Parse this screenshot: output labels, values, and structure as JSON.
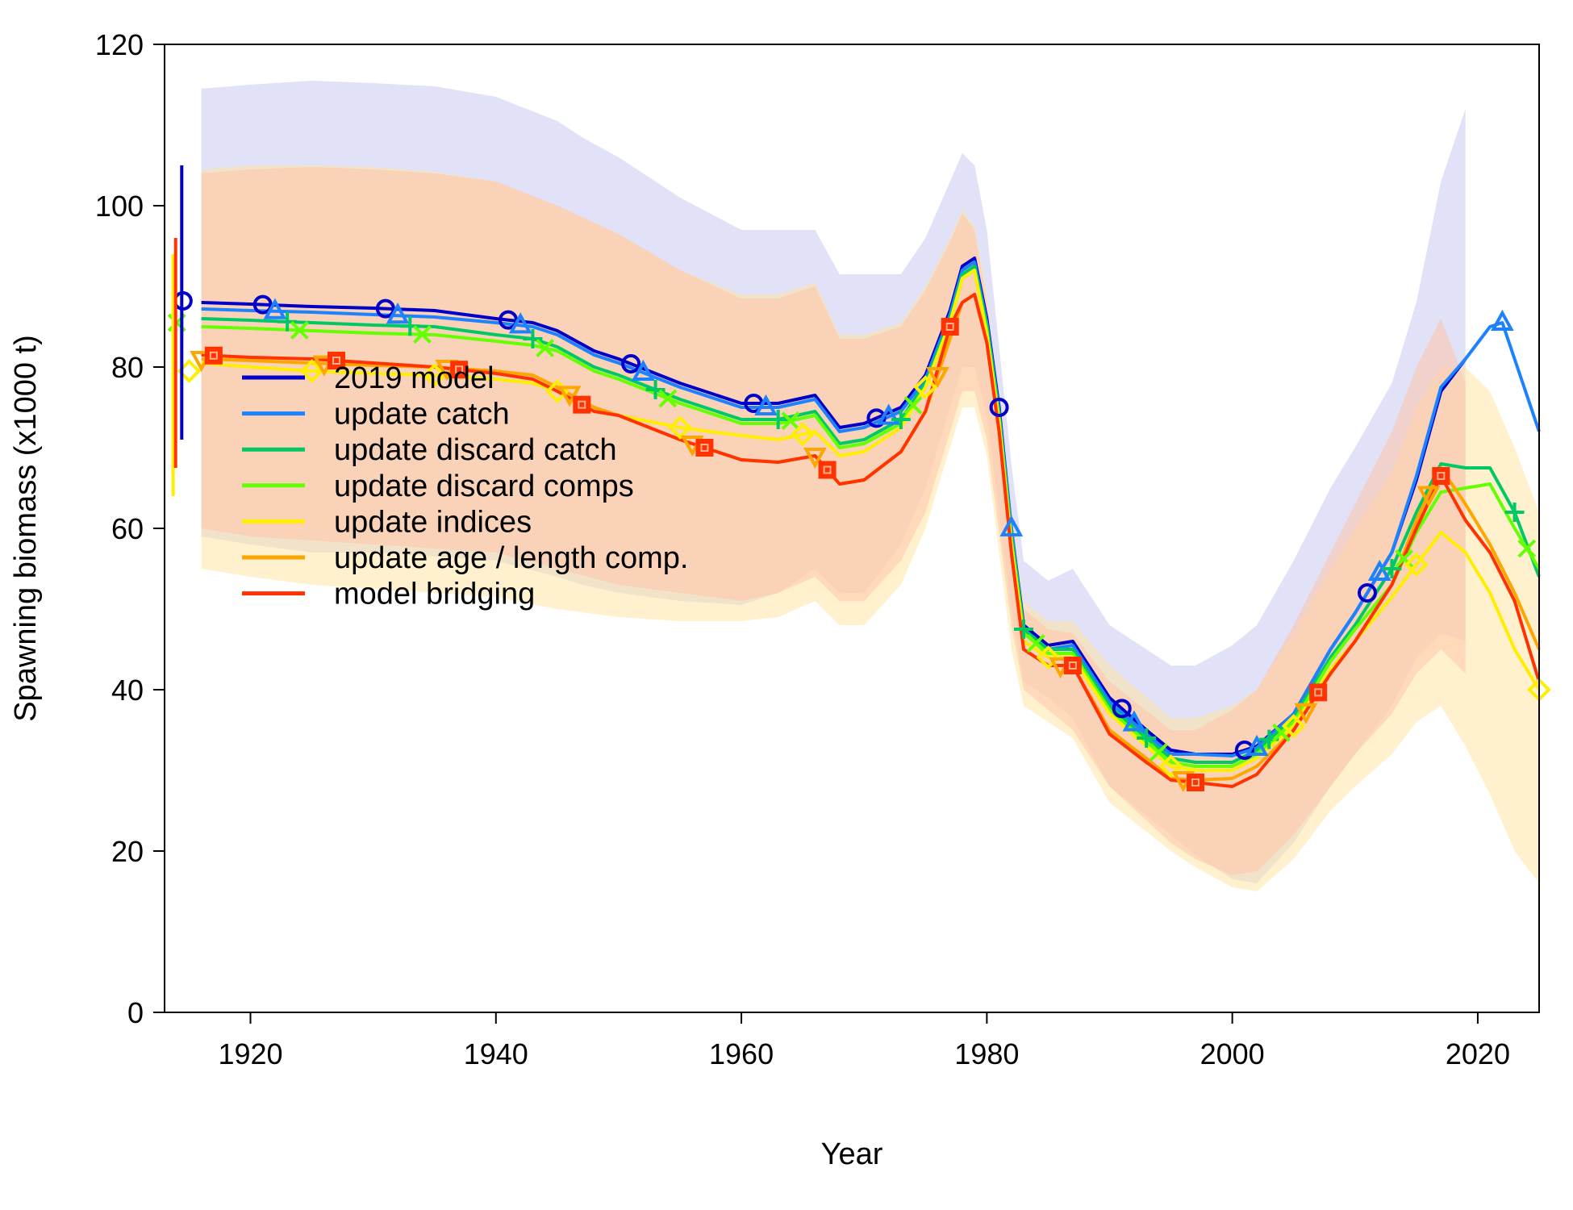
{
  "chart_data": {
    "type": "line",
    "xlabel": "Year",
    "ylabel": "Spawning biomass (x1000 t)",
    "xlim": [
      1913,
      2025
    ],
    "ylim": [
      0,
      120
    ],
    "x_ticks": [
      1920,
      1940,
      1960,
      1980,
      2000,
      2020
    ],
    "y_ticks": [
      0,
      20,
      40,
      60,
      80,
      100,
      120
    ],
    "legend_position": "left-middle",
    "bands": [
      {
        "color": "#c8c8f0",
        "x": [
          1916,
          1920,
          1925,
          1930,
          1935,
          1940,
          1945,
          1947,
          1950,
          1955,
          1960,
          1963,
          1966,
          1968,
          1970,
          1973,
          1975,
          1977,
          1978,
          1979,
          1980,
          1982,
          1983,
          1985,
          1987,
          1990,
          1995,
          1997,
          2000,
          2002,
          2005,
          2008,
          2010,
          2013,
          2015,
          2017,
          2019
        ],
        "upper": [
          114.5,
          115,
          115.5,
          115.2,
          114.8,
          113.5,
          110.5,
          108.5,
          106,
          101,
          97,
          97,
          97,
          91.5,
          91.5,
          91.5,
          96,
          103,
          106.5,
          105,
          97,
          68,
          56,
          53.5,
          55,
          48,
          43,
          43,
          45.5,
          48,
          56,
          65,
          70,
          78,
          88,
          103,
          112
        ],
        "lower": [
          59,
          58,
          57,
          57,
          56.5,
          56,
          54,
          53,
          52,
          51,
          50.5,
          52,
          55,
          52,
          52,
          58,
          65,
          75,
          80,
          80,
          74,
          50,
          41,
          39,
          36.5,
          28,
          22,
          19.5,
          16.5,
          16,
          21,
          28,
          32,
          38,
          44,
          47,
          46
        ]
      },
      {
        "color": "#ffe6a6",
        "x": [
          1916,
          1920,
          1925,
          1930,
          1935,
          1940,
          1945,
          1950,
          1955,
          1960,
          1963,
          1966,
          1968,
          1970,
          1973,
          1975,
          1977,
          1978,
          1979,
          1980,
          1982,
          1983,
          1985,
          1987,
          1990,
          1995,
          1997,
          2000,
          2002,
          2005,
          2008,
          2010,
          2013,
          2015,
          2017,
          2019,
          2021,
          2023,
          2025
        ],
        "upper": [
          104.5,
          105,
          105,
          104.8,
          104.2,
          103,
          100,
          96.5,
          92,
          89,
          89,
          90.5,
          84,
          84,
          85.5,
          90,
          96,
          99.5,
          97.5,
          89,
          62,
          51,
          48.5,
          48.5,
          43,
          36.5,
          36.5,
          38,
          40,
          47,
          55,
          60,
          67,
          75,
          80,
          80,
          77,
          70,
          62
        ],
        "lower": [
          55,
          54,
          53,
          52.5,
          52,
          51.5,
          50,
          49,
          48.5,
          48.5,
          49,
          51,
          48,
          48,
          53,
          60,
          70,
          75,
          75,
          69,
          45,
          38,
          36,
          34,
          26,
          20,
          18,
          15.5,
          15,
          19,
          25,
          28,
          32,
          36,
          38,
          33,
          27,
          20,
          16
        ]
      },
      {
        "color": "#ffc4a8",
        "x": [
          1916,
          1920,
          1925,
          1930,
          1935,
          1940,
          1945,
          1950,
          1955,
          1960,
          1963,
          1966,
          1968,
          1970,
          1973,
          1975,
          1977,
          1978,
          1979,
          1980,
          1982,
          1983,
          1985,
          1987,
          1990,
          1995,
          1997,
          2000,
          2002,
          2005,
          2008,
          2010,
          2013,
          2015,
          2017,
          2019
        ],
        "upper": [
          104,
          104.5,
          104.8,
          104.5,
          104,
          103,
          100,
          96.5,
          92,
          88.5,
          88.5,
          90,
          83.5,
          83.5,
          85,
          89.5,
          95.5,
          99,
          97,
          88,
          61,
          50,
          47.5,
          47,
          41,
          35,
          35,
          37.5,
          40,
          48,
          57,
          63,
          72,
          80,
          86,
          78
        ],
        "lower": [
          60,
          59,
          58.5,
          58,
          57.5,
          57,
          55,
          53,
          52,
          51,
          52,
          54,
          51,
          51,
          56,
          62,
          72,
          77,
          77,
          71,
          48,
          40,
          37.5,
          35,
          28,
          21,
          19,
          17,
          17.5,
          22,
          28,
          32,
          37,
          42,
          45,
          42
        ]
      }
    ],
    "series": [
      {
        "name": "2019 model",
        "color": "#0000c8",
        "marker": "circle",
        "marker_x": [
          1921,
          1931,
          1941,
          1951,
          1961,
          1971,
          1981,
          1991,
          2001,
          2011
        ],
        "x": [
          1916,
          1920,
          1925,
          1930,
          1935,
          1940,
          1943,
          1945,
          1948,
          1950,
          1955,
          1960,
          1963,
          1966,
          1968,
          1970,
          1973,
          1975,
          1977,
          1978,
          1979,
          1980,
          1981,
          1982,
          1983,
          1985,
          1987,
          1990,
          1993,
          1995,
          1997,
          2000,
          2002,
          2005,
          2008,
          2010,
          2013,
          2015,
          2017,
          2019
        ],
        "y": [
          88,
          87.8,
          87.5,
          87.3,
          87,
          86,
          85.5,
          84.5,
          82,
          81,
          78,
          75.5,
          75.5,
          76.5,
          72.5,
          73,
          75,
          79,
          87,
          92.5,
          93.5,
          86,
          75,
          60,
          48,
          45.5,
          46,
          39,
          35,
          32.5,
          32,
          32,
          33,
          37,
          45,
          49.5,
          57,
          66,
          77,
          81
        ],
        "start": 88.2,
        "start_err": [
          71,
          105
        ]
      },
      {
        "name": "update catch",
        "color": "#1e82ff",
        "marker": "triangle",
        "marker_x": [
          1922,
          1932,
          1942,
          1952,
          1962,
          1972,
          1982,
          1992,
          2002,
          2012,
          2022
        ],
        "x": [
          1916,
          1920,
          1925,
          1930,
          1935,
          1940,
          1943,
          1945,
          1948,
          1950,
          1955,
          1960,
          1963,
          1966,
          1968,
          1970,
          1973,
          1975,
          1977,
          1978,
          1979,
          1980,
          1981,
          1982,
          1983,
          1985,
          1987,
          1990,
          1993,
          1995,
          1997,
          2000,
          2002,
          2005,
          2008,
          2010,
          2013,
          2015,
          2017,
          2019,
          2021,
          2022,
          2025
        ],
        "y": [
          87.2,
          87,
          86.8,
          86.5,
          86.2,
          85.5,
          85,
          84,
          81.5,
          80.5,
          77.5,
          75,
          75,
          76,
          72,
          72.5,
          74.5,
          78.5,
          86.5,
          92,
          93,
          85.5,
          74.5,
          60,
          47.5,
          45,
          45.5,
          38.5,
          34.5,
          32,
          32,
          31.8,
          32.8,
          37,
          45,
          49.5,
          57,
          66.5,
          77.5,
          81,
          85,
          85.5,
          72
        ]
      },
      {
        "name": "update discard catch",
        "color": "#00c864",
        "marker": "plus",
        "marker_x": [
          1923,
          1933,
          1943,
          1953,
          1963,
          1973,
          1983,
          1993,
          2003,
          2013,
          2023
        ],
        "x": [
          1916,
          1920,
          1925,
          1930,
          1935,
          1940,
          1943,
          1945,
          1948,
          1950,
          1955,
          1960,
          1963,
          1966,
          1968,
          1970,
          1973,
          1975,
          1977,
          1978,
          1979,
          1980,
          1981,
          1982,
          1983,
          1985,
          1987,
          1990,
          1993,
          1995,
          1997,
          2000,
          2002,
          2005,
          2008,
          2010,
          2013,
          2015,
          2017,
          2019,
          2021,
          2023,
          2025
        ],
        "y": [
          86,
          85.8,
          85.5,
          85.2,
          85,
          84,
          83.5,
          82.5,
          80,
          79,
          76,
          73.5,
          73.5,
          74.5,
          70.5,
          71,
          73.5,
          78,
          86,
          91.5,
          92.5,
          85,
          74,
          59,
          47.5,
          45,
          45,
          38,
          34,
          31.5,
          31,
          31,
          32.5,
          36.5,
          44,
          48,
          55,
          62,
          68,
          67.5,
          67.5,
          62,
          54
        ]
      },
      {
        "name": "update discard comps",
        "color": "#64ff00",
        "marker": "cross",
        "marker_x": [
          1914,
          1924,
          1934,
          1944,
          1954,
          1964,
          1974,
          1984,
          1994,
          2004,
          2014,
          2024
        ],
        "x": [
          1916,
          1920,
          1925,
          1930,
          1935,
          1940,
          1943,
          1945,
          1948,
          1950,
          1955,
          1960,
          1963,
          1966,
          1968,
          1970,
          1973,
          1975,
          1977,
          1978,
          1979,
          1980,
          1981,
          1982,
          1983,
          1985,
          1987,
          1990,
          1993,
          1995,
          1997,
          2000,
          2002,
          2005,
          2008,
          2010,
          2013,
          2015,
          2017,
          2019,
          2021,
          2023,
          2025
        ],
        "y": [
          85,
          84.8,
          84.5,
          84.2,
          84,
          83.2,
          82.7,
          82,
          79.5,
          78.5,
          75.5,
          73,
          73,
          74,
          70,
          70.5,
          73,
          77.5,
          85.5,
          91,
          92,
          84.5,
          73.5,
          58.5,
          47,
          44.5,
          44.5,
          37.5,
          33.5,
          31,
          30.5,
          30.5,
          32,
          36,
          43.5,
          47.5,
          53,
          59.5,
          64.5,
          65,
          65.5,
          60,
          55
        ],
        "start": 85.5
      },
      {
        "name": "update indices",
        "color": "#ffee00",
        "marker": "diamond",
        "marker_x": [
          1915,
          1925,
          1935,
          1945,
          1955,
          1965,
          1975,
          1985,
          1995,
          2005,
          2015,
          2025
        ],
        "x": [
          1916,
          1920,
          1925,
          1930,
          1935,
          1940,
          1943,
          1945,
          1948,
          1950,
          1955,
          1960,
          1963,
          1966,
          1968,
          1970,
          1973,
          1975,
          1977,
          1978,
          1979,
          1980,
          1981,
          1982,
          1983,
          1985,
          1987,
          1990,
          1993,
          1995,
          1997,
          2000,
          2002,
          2005,
          2008,
          2010,
          2013,
          2015,
          2017,
          2019,
          2021,
          2023,
          2025
        ],
        "y": [
          80.5,
          80,
          79.5,
          79.2,
          79,
          78.5,
          78,
          77,
          74.5,
          74,
          72.5,
          71.5,
          71,
          72,
          69,
          69.5,
          72.5,
          77.5,
          85.5,
          91,
          92,
          84,
          73,
          58,
          46,
          44,
          44,
          37,
          33,
          30.5,
          30,
          30,
          31.5,
          35.5,
          42.5,
          46,
          51.5,
          55.5,
          59.5,
          57,
          52,
          45,
          40
        ],
        "start": 79.5,
        "start_err": [
          64,
          94
        ]
      },
      {
        "name": "update age / length comp.",
        "color": "#ffa500",
        "marker": "triangle-down",
        "marker_x": [
          1916,
          1926,
          1936,
          1946,
          1956,
          1966,
          1976,
          1986,
          1996,
          2006,
          2016
        ],
        "x": [
          1916,
          1920,
          1925,
          1930,
          1935,
          1940,
          1943,
          1945,
          1948,
          1950,
          1955,
          1960,
          1963,
          1966,
          1968,
          1970,
          1973,
          1975,
          1977,
          1978,
          1979,
          1980,
          1981,
          1982,
          1983,
          1985,
          1987,
          1990,
          1993,
          1995,
          1997,
          2000,
          2002,
          2005,
          2008,
          2010,
          2013,
          2015,
          2017,
          2019,
          2021,
          2023,
          2025
        ],
        "y": [
          81,
          80.8,
          80.5,
          80.2,
          80,
          79.5,
          79,
          77.5,
          75,
          74,
          71,
          68.5,
          68.2,
          69,
          65.5,
          66,
          69.5,
          74.5,
          83.5,
          88,
          89,
          83,
          72,
          57,
          45,
          43,
          43,
          35,
          31.5,
          29,
          28.8,
          29,
          30.5,
          35,
          42,
          46,
          53,
          61,
          67.5,
          63,
          58,
          52,
          45
        ]
      },
      {
        "name": "model bridging",
        "color": "#ff3200",
        "marker": "square",
        "marker_x": [
          1917,
          1927,
          1937,
          1947,
          1957,
          1967,
          1977,
          1987,
          1997,
          2007,
          2017
        ],
        "x": [
          1916,
          1920,
          1925,
          1930,
          1935,
          1940,
          1943,
          1945,
          1948,
          1950,
          1955,
          1960,
          1963,
          1966,
          1968,
          1970,
          1973,
          1975,
          1977,
          1978,
          1979,
          1980,
          1981,
          1982,
          1983,
          1985,
          1987,
          1990,
          1993,
          1995,
          1997,
          2000,
          2002,
          2005,
          2008,
          2010,
          2013,
          2015,
          2017,
          2019,
          2021,
          2023,
          2025
        ],
        "y": [
          81.5,
          81.2,
          81,
          80.5,
          80,
          79.2,
          78.5,
          77,
          74.5,
          74,
          71,
          68.5,
          68.2,
          69,
          65.5,
          66,
          69.5,
          74.5,
          85,
          88,
          89,
          83,
          72,
          57,
          45,
          43,
          43,
          34.5,
          31,
          28.8,
          28.5,
          28,
          29.5,
          35,
          42,
          46,
          53,
          60,
          66.5,
          61,
          57,
          51,
          41
        ],
        "start": 82,
        "start_err": [
          67.5,
          96
        ]
      }
    ]
  }
}
